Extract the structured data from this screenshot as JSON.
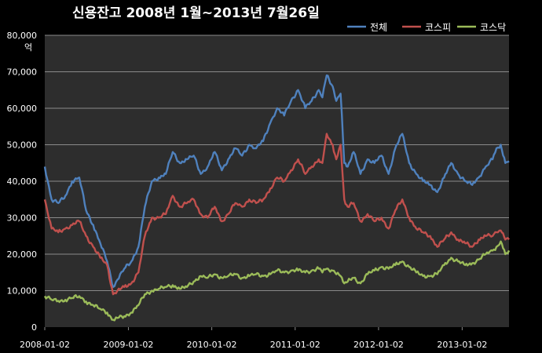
{
  "chart_data": {
    "type": "line",
    "title": "신용잔고 2008년 1월~2013년 7월26일",
    "ylabel": "억",
    "ylim": [
      0,
      80000
    ],
    "yticks": [
      0,
      10000,
      20000,
      30000,
      40000,
      50000,
      60000,
      70000,
      80000
    ],
    "ytick_labels": [
      "0",
      "10,000",
      "20,000",
      "30,000",
      "40,000",
      "50,000",
      "60,000",
      "70,000",
      "80,000"
    ],
    "xlim": [
      "2008-01-02",
      "2013-07-26"
    ],
    "xticks": [
      "2008-01-02",
      "2009-01-02",
      "2010-01-02",
      "2011-01-02",
      "2012-01-02",
      "2013-01-02"
    ],
    "grid": "horizontal",
    "legend_position": "top-right",
    "colors": {
      "background": "#000000",
      "plot_area": "#2d2d2d",
      "grid": "#8a8a8a"
    },
    "series": [
      {
        "name": "전체",
        "color": "#4f81bd",
        "x": [
          "2008-01-02",
          "2008-02-01",
          "2008-03-01",
          "2008-04-01",
          "2008-05-01",
          "2008-06-01",
          "2008-07-01",
          "2008-08-01",
          "2008-09-01",
          "2008-10-01",
          "2008-10-27",
          "2008-11-15",
          "2008-12-15",
          "2009-01-15",
          "2009-02-15",
          "2009-03-15",
          "2009-04-15",
          "2009-05-15",
          "2009-06-15",
          "2009-07-15",
          "2009-08-15",
          "2009-09-15",
          "2009-10-15",
          "2009-11-15",
          "2009-12-15",
          "2010-01-15",
          "2010-02-15",
          "2010-03-15",
          "2010-04-15",
          "2010-05-15",
          "2010-06-15",
          "2010-07-15",
          "2010-08-15",
          "2010-09-15",
          "2010-10-15",
          "2010-11-15",
          "2010-12-15",
          "2011-01-15",
          "2011-02-15",
          "2011-03-15",
          "2011-04-15",
          "2011-05-01",
          "2011-05-20",
          "2011-06-15",
          "2011-07-01",
          "2011-07-20",
          "2011-08-05",
          "2011-08-20",
          "2011-09-15",
          "2011-10-15",
          "2011-11-15",
          "2011-12-15",
          "2012-01-15",
          "2012-02-15",
          "2012-03-15",
          "2012-04-15",
          "2012-05-15",
          "2012-06-15",
          "2012-07-15",
          "2012-08-15",
          "2012-09-15",
          "2012-10-15",
          "2012-11-15",
          "2012-12-15",
          "2013-01-15",
          "2013-02-15",
          "2013-03-15",
          "2013-04-15",
          "2013-05-15",
          "2013-06-01",
          "2013-06-20",
          "2013-07-10",
          "2013-07-26"
        ],
        "values": [
          44000,
          35000,
          34000,
          36000,
          40000,
          41000,
          32000,
          28000,
          23000,
          18000,
          11000,
          13000,
          16000,
          18000,
          22000,
          33000,
          40000,
          41000,
          42000,
          48000,
          45000,
          46000,
          47000,
          42000,
          44000,
          48000,
          43000,
          46000,
          49000,
          47000,
          50000,
          49000,
          51000,
          56000,
          60000,
          58000,
          62000,
          65000,
          60000,
          62000,
          65000,
          63000,
          69000,
          66000,
          62000,
          64000,
          45000,
          44000,
          48000,
          42000,
          46000,
          45000,
          47000,
          42000,
          49000,
          53000,
          45000,
          42000,
          40000,
          39000,
          37000,
          41000,
          45000,
          42000,
          40000,
          39000,
          41000,
          44000,
          46000,
          49000,
          50000,
          45000,
          45500
        ]
      },
      {
        "name": "코스피",
        "color": "#c0504d",
        "x": [
          "2008-01-02",
          "2008-02-01",
          "2008-03-01",
          "2008-04-01",
          "2008-05-01",
          "2008-06-01",
          "2008-07-01",
          "2008-08-01",
          "2008-09-01",
          "2008-10-01",
          "2008-10-27",
          "2008-11-15",
          "2008-12-15",
          "2009-01-15",
          "2009-02-15",
          "2009-03-15",
          "2009-04-15",
          "2009-05-15",
          "2009-06-15",
          "2009-07-15",
          "2009-08-15",
          "2009-09-15",
          "2009-10-15",
          "2009-11-15",
          "2009-12-15",
          "2010-01-15",
          "2010-02-15",
          "2010-03-15",
          "2010-04-15",
          "2010-05-15",
          "2010-06-15",
          "2010-07-15",
          "2010-08-15",
          "2010-09-15",
          "2010-10-15",
          "2010-11-15",
          "2010-12-15",
          "2011-01-15",
          "2011-02-15",
          "2011-03-15",
          "2011-04-15",
          "2011-05-01",
          "2011-05-20",
          "2011-06-15",
          "2011-07-01",
          "2011-07-20",
          "2011-08-05",
          "2011-08-20",
          "2011-09-15",
          "2011-10-15",
          "2011-11-15",
          "2011-12-15",
          "2012-01-15",
          "2012-02-15",
          "2012-03-15",
          "2012-04-15",
          "2012-05-15",
          "2012-06-15",
          "2012-07-15",
          "2012-08-15",
          "2012-09-15",
          "2012-10-15",
          "2012-11-15",
          "2012-12-15",
          "2013-01-15",
          "2013-02-15",
          "2013-03-15",
          "2013-04-15",
          "2013-05-15",
          "2013-06-01",
          "2013-06-20",
          "2013-07-10",
          "2013-07-26"
        ],
        "values": [
          35000,
          27000,
          26000,
          27000,
          28000,
          29000,
          25000,
          22000,
          19000,
          17000,
          9000,
          10000,
          11000,
          12000,
          15000,
          25000,
          30000,
          30000,
          31000,
          36000,
          33000,
          34000,
          35000,
          31000,
          30000,
          33000,
          29000,
          31000,
          34000,
          33000,
          35000,
          34000,
          35000,
          38000,
          41000,
          40000,
          43000,
          46000,
          42000,
          44000,
          46000,
          45000,
          53000,
          50000,
          46000,
          50000,
          35000,
          33000,
          34000,
          29000,
          31000,
          29000,
          30000,
          27000,
          32000,
          35000,
          30000,
          27000,
          26000,
          25000,
          22000,
          24000,
          26000,
          24000,
          23000,
          22000,
          24000,
          25000,
          25000,
          26000,
          26500,
          24000,
          24000
        ]
      },
      {
        "name": "코스닥",
        "color": "#9bbb59",
        "x": [
          "2008-01-02",
          "2008-02-01",
          "2008-03-01",
          "2008-04-01",
          "2008-05-01",
          "2008-06-01",
          "2008-07-01",
          "2008-08-01",
          "2008-09-01",
          "2008-10-01",
          "2008-10-27",
          "2008-11-15",
          "2008-12-15",
          "2009-01-15",
          "2009-02-15",
          "2009-03-15",
          "2009-04-15",
          "2009-05-15",
          "2009-06-15",
          "2009-07-15",
          "2009-08-15",
          "2009-09-15",
          "2009-10-15",
          "2009-11-15",
          "2009-12-15",
          "2010-01-15",
          "2010-02-15",
          "2010-03-15",
          "2010-04-15",
          "2010-05-15",
          "2010-06-15",
          "2010-07-15",
          "2010-08-15",
          "2010-09-15",
          "2010-10-15",
          "2010-11-15",
          "2010-12-15",
          "2011-01-15",
          "2011-02-15",
          "2011-03-15",
          "2011-04-15",
          "2011-05-01",
          "2011-05-20",
          "2011-06-15",
          "2011-07-01",
          "2011-07-20",
          "2011-08-05",
          "2011-08-20",
          "2011-09-15",
          "2011-10-15",
          "2011-11-15",
          "2011-12-15",
          "2012-01-15",
          "2012-02-15",
          "2012-03-15",
          "2012-04-15",
          "2012-05-15",
          "2012-06-15",
          "2012-07-15",
          "2012-08-15",
          "2012-09-15",
          "2012-10-15",
          "2012-11-15",
          "2012-12-15",
          "2013-01-15",
          "2013-02-15",
          "2013-03-15",
          "2013-04-15",
          "2013-05-15",
          "2013-06-01",
          "2013-06-20",
          "2013-07-10",
          "2013-07-26"
        ],
        "values": [
          8500,
          7500,
          7200,
          7500,
          8000,
          8500,
          7000,
          6000,
          5000,
          4000,
          2000,
          2500,
          3000,
          4000,
          6000,
          9000,
          10000,
          10500,
          11000,
          11500,
          10500,
          11000,
          12500,
          14000,
          13500,
          14500,
          13500,
          14000,
          14500,
          13500,
          14000,
          14500,
          14000,
          14500,
          15500,
          15000,
          15500,
          15500,
          15000,
          15500,
          16000,
          15000,
          16000,
          15500,
          14500,
          14000,
          12000,
          12500,
          13500,
          12000,
          14500,
          15500,
          16500,
          16000,
          17000,
          18000,
          16500,
          15000,
          14000,
          14000,
          14500,
          17000,
          19000,
          18000,
          17000,
          17500,
          18500,
          20000,
          21000,
          22000,
          23500,
          20000,
          21000
        ]
      }
    ]
  }
}
